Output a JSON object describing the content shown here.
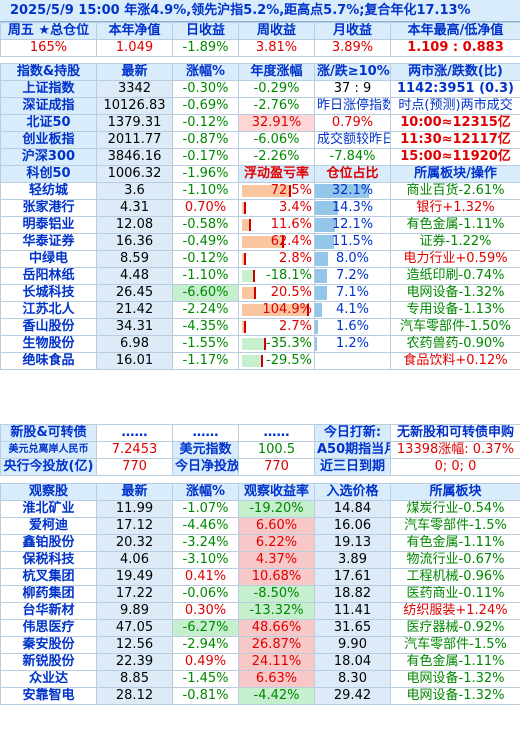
{
  "header": {
    "title": "2025/5/9  15:00 年涨4.9%,领先沪指5.2%,距高点5.7%;复合年化17.13%"
  },
  "summary": {
    "labels": [
      "周五 ★总仓位",
      "本年净值",
      "日收益",
      "周收益",
      "月收益",
      "本年最高/低净值"
    ],
    "values": [
      "165%",
      "1.049",
      "-1.89%",
      "3.81%",
      "3.89%",
      "1.109 : 0.883"
    ]
  },
  "index_header": {
    "c1": "指数&持股",
    "c2": "最新",
    "c3": "涨幅%",
    "c4": "年度涨幅",
    "c5": "涨/跌≥10%",
    "c6": "两市涨/跌数(比)"
  },
  "indices": [
    {
      "name": "上证指数",
      "price": "3342",
      "chg": "-0.30%",
      "ytd": "-0.29%",
      "c5": "37 : 9",
      "c6": "1142:3951 (0.3)"
    },
    {
      "name": "深证成指",
      "price": "10126.83",
      "chg": "-0.69%",
      "ytd": "-2.76%",
      "c5": "昨日涨停指数",
      "c6": "时点(预测)两市成交"
    },
    {
      "name": "北证50",
      "price": "1379.31",
      "chg": "-0.12%",
      "ytd": "32.91%",
      "c5": "0.79%",
      "c6": "10:00≈12315亿"
    },
    {
      "name": "创业板指",
      "price": "2011.77",
      "chg": "-0.87%",
      "ytd": "-6.06%",
      "c5": "成交额较昨日",
      "c6": "11:30≈12117亿"
    },
    {
      "name": "沪深300",
      "price": "3846.16",
      "chg": "-0.17%",
      "ytd": "-2.26%",
      "c5": "-7.84%",
      "c6": "15:00≈11920亿"
    },
    {
      "name": "科创50",
      "price": "1006.32",
      "chg": "-1.96%",
      "ytd": "浮动盈亏率",
      "c5": "仓位占比",
      "c6": "所属板块/操作"
    }
  ],
  "holdings": [
    {
      "name": "轻纺城",
      "price": "3.6",
      "chg": "-1.10%",
      "pl": "72.5%",
      "pl_level": 0.72,
      "pos": "32.1%",
      "pos_level": 0.32,
      "sector": "商业百货-2.61%"
    },
    {
      "name": "张家港行",
      "price": "4.31",
      "chg": "0.70%",
      "pl": "3.4%",
      "pl_level": 0.03,
      "pos": "14.3%",
      "pos_level": 0.14,
      "sector": "银行+1.32%"
    },
    {
      "name": "明泰铝业",
      "price": "12.08",
      "chg": "-0.58%",
      "pl": "11.6%",
      "pl_level": 0.12,
      "pos": "12.1%",
      "pos_level": 0.12,
      "sector": "有色金属-1.11%"
    },
    {
      "name": "华泰证券",
      "price": "16.36",
      "chg": "-0.49%",
      "pl": "62.4%",
      "pl_level": 0.62,
      "pos": "11.5%",
      "pos_level": 0.115,
      "sector": "证券-1.22%"
    },
    {
      "name": "中绿电",
      "price": "8.59",
      "chg": "-0.12%",
      "pl": "2.8%",
      "pl_level": 0.03,
      "pos": "8.0%",
      "pos_level": 0.08,
      "sector": "电力行业+0.59%"
    },
    {
      "name": "岳阳林纸",
      "price": "4.48",
      "chg": "-1.10%",
      "pl": "-18.1%",
      "pl_level": 0.18,
      "pos": "7.2%",
      "pos_level": 0.072,
      "sector": "造纸印刷-0.74%"
    },
    {
      "name": "长城科技",
      "price": "26.45",
      "chg": "-6.60%",
      "pl": "20.5%",
      "pl_level": 0.2,
      "pos": "7.1%",
      "pos_level": 0.071,
      "sector": "电网设备-1.32%"
    },
    {
      "name": "江苏北人",
      "price": "21.42",
      "chg": "-2.24%",
      "pl": "104.9%",
      "pl_level": 1.0,
      "pos": "4.1%",
      "pos_level": 0.041,
      "sector": "专用设备-1.13%"
    },
    {
      "name": "香山股份",
      "price": "34.31",
      "chg": "-4.35%",
      "pl": "2.7%",
      "pl_level": 0.03,
      "pos": "1.6%",
      "pos_level": 0.016,
      "sector": "汽车零部件-1.50%"
    },
    {
      "name": "生物股份",
      "price": "6.98",
      "chg": "-1.55%",
      "pl": "-35.3%",
      "pl_level": 0.35,
      "pos": "1.2%",
      "pos_level": 0.012,
      "sector": "农药兽药-0.90%"
    },
    {
      "name": "绝味食品",
      "price": "16.01",
      "chg": "-1.17%",
      "pl": "-29.5%",
      "pl_level": 0.3,
      "pos": "",
      "pos_level": 0.0,
      "sector": "食品饮料+0.12%"
    }
  ],
  "misc": {
    "r1": [
      "新股&可转债",
      "……",
      "……",
      "……",
      "今日打新:",
      "无新股和可转债申购"
    ],
    "r2": [
      "美元兑离岸人民币",
      "7.2453",
      "美元指数",
      "100.5",
      "A50期指当月",
      "13398涨幅: 0.37%"
    ],
    "r3": [
      "央行今投放(亿)",
      "770",
      "今日净投放",
      "770",
      "近三日到期",
      "0; 0; 0"
    ]
  },
  "watch_header": {
    "c1": "观察股",
    "c2": "最新",
    "c3": "涨幅%",
    "c4": "观察收益率",
    "c5": "入选价格",
    "c6": "所属板块"
  },
  "watch": [
    {
      "name": "淮北矿业",
      "price": "11.99",
      "chg": "-1.07%",
      "ret": "-19.20%",
      "entry": "14.84",
      "sector": "煤炭行业-0.54%"
    },
    {
      "name": "爱柯迪",
      "price": "17.12",
      "chg": "-4.46%",
      "ret": "6.60%",
      "entry": "16.06",
      "sector": "汽车零部件-1.5%"
    },
    {
      "name": "鑫铂股份",
      "price": "20.32",
      "chg": "-3.24%",
      "ret": "6.22%",
      "entry": "19.13",
      "sector": "有色金属-1.11%"
    },
    {
      "name": "保税科技",
      "price": "4.06",
      "chg": "-3.10%",
      "ret": "4.37%",
      "entry": "3.89",
      "sector": "物流行业-0.67%"
    },
    {
      "name": "杭叉集团",
      "price": "19.49",
      "chg": "0.41%",
      "ret": "10.68%",
      "entry": "17.61",
      "sector": "工程机械-0.96%"
    },
    {
      "name": "柳药集团",
      "price": "17.22",
      "chg": "-0.06%",
      "ret": "-8.50%",
      "entry": "18.82",
      "sector": "医药商业-0.11%"
    },
    {
      "name": "台华新材",
      "price": "9.89",
      "chg": "0.30%",
      "ret": "-13.32%",
      "entry": "11.41",
      "sector": "纺织服装+1.24%"
    },
    {
      "name": "伟思医疗",
      "price": "47.05",
      "chg": "-6.27%",
      "ret": "48.66%",
      "entry": "31.65",
      "sector": "医疗器械-0.92%"
    },
    {
      "name": "秦安股份",
      "price": "12.56",
      "chg": "-2.94%",
      "ret": "26.87%",
      "entry": "9.90",
      "sector": "汽车零部件-1.5%"
    },
    {
      "name": "新锐股份",
      "price": "22.39",
      "chg": "0.49%",
      "ret": "24.11%",
      "entry": "18.04",
      "sector": "有色金属-1.11%"
    },
    {
      "name": "众业达",
      "price": "8.85",
      "chg": "-1.45%",
      "ret": "6.63%",
      "entry": "8.30",
      "sector": "电网设备-1.32%"
    },
    {
      "name": "安靠智电",
      "price": "28.12",
      "chg": "-0.81%",
      "ret": "-4.42%",
      "entry": "29.42",
      "sector": "电网设备-1.32%"
    }
  ],
  "colors": {
    "header_bg": "#d8ecfb",
    "label_blue": "#0033cc",
    "up_red": "#e00000",
    "down_green": "#008800",
    "highlight_yellow": "#ffff00"
  }
}
